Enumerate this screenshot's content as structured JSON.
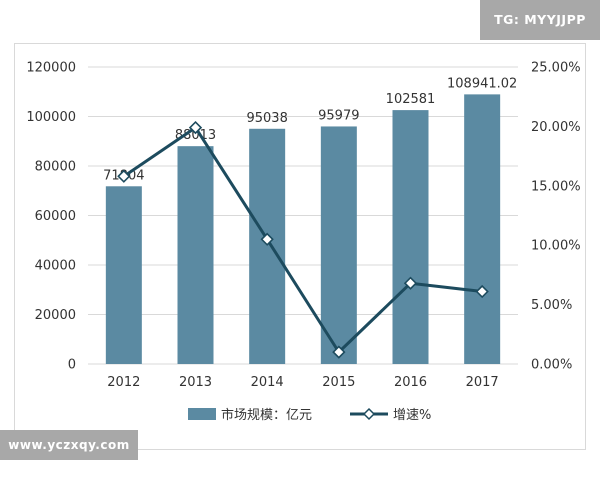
{
  "watermarks": {
    "top_right": "TG: MYYJJPP",
    "bottom_left": "www.yczxqy.com"
  },
  "colors": {
    "bar": "#5b8aa2",
    "line": "#1d4b5e",
    "grid": "#d9d9d9",
    "text": "#333333"
  },
  "chart_data": {
    "type": "bar",
    "categories": [
      "2012",
      "2013",
      "2014",
      "2015",
      "2016",
      "2017"
    ],
    "series": [
      {
        "name": "市场规模：亿元",
        "type": "bar",
        "axis": "left",
        "values": [
          71804,
          88013,
          95038,
          95979,
          102581,
          108941.02
        ],
        "labels": [
          "71804",
          "88013",
          "95038",
          "95979",
          "102581",
          "108941.02"
        ]
      },
      {
        "name": "增速%",
        "type": "line",
        "axis": "right",
        "values": [
          15.8,
          19.9,
          10.5,
          1.0,
          6.8,
          6.1
        ]
      }
    ],
    "y_left": {
      "ylim": [
        0,
        120000
      ],
      "ticks": [
        "0",
        "20000",
        "40000",
        "60000",
        "80000",
        "100000",
        "120000"
      ]
    },
    "y_right": {
      "ylim": [
        0,
        25
      ],
      "ticks": [
        "0.00%",
        "5.00%",
        "10.00%",
        "15.00%",
        "20.00%",
        "25.00%"
      ]
    },
    "grid": true,
    "legend": "bottom"
  }
}
